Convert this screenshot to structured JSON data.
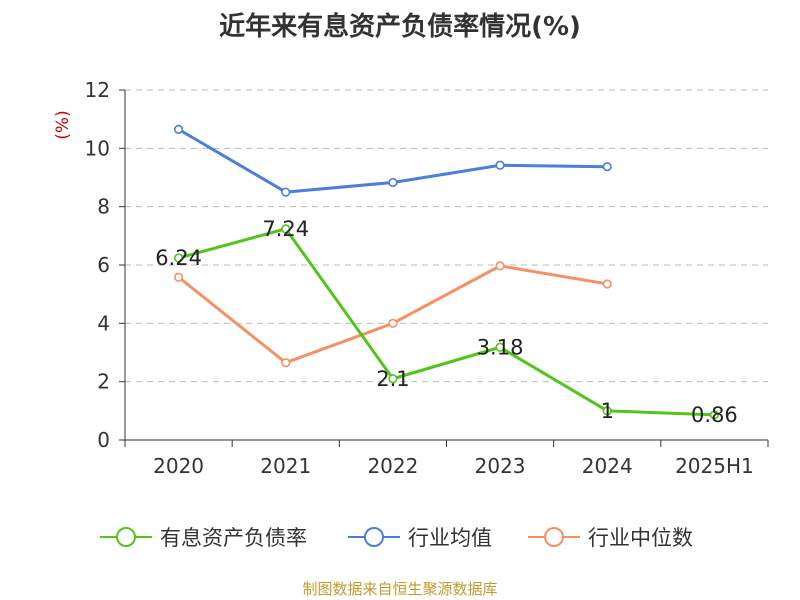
{
  "chart_data": {
    "type": "line",
    "title": "近年来有息资产负债率情况(%)",
    "ylabel": "(%)",
    "xlabel": "",
    "categories": [
      "2020",
      "2021",
      "2022",
      "2023",
      "2024",
      "2025H1"
    ],
    "ylim": [
      0,
      12
    ],
    "yticks": [
      0,
      2,
      4,
      6,
      8,
      10,
      12
    ],
    "grid": true,
    "legend_position": "bottom",
    "series": [
      {
        "name": "有息资产负债率",
        "color": "#52c41a",
        "values": [
          6.24,
          7.24,
          2.1,
          3.18,
          1,
          0.86
        ],
        "labels": [
          "6.24",
          "7.24",
          "2.1",
          "3.18",
          "1",
          "0.86"
        ]
      },
      {
        "name": "行业均值",
        "color": "#4a7fdb",
        "values": [
          10.65,
          8.5,
          8.83,
          9.42,
          9.37,
          null
        ]
      },
      {
        "name": "行业中位数",
        "color": "#f59062",
        "values": [
          5.58,
          2.65,
          4.0,
          5.97,
          5.35,
          null
        ]
      }
    ]
  },
  "source_note": "制图数据来自恒生聚源数据库"
}
